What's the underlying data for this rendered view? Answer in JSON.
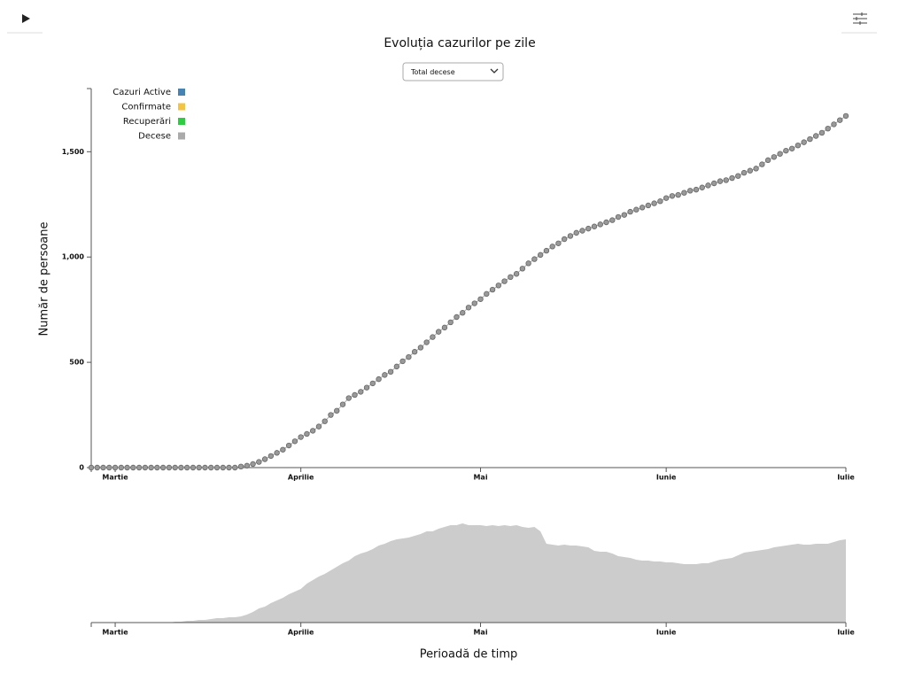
{
  "page": {
    "controls": {
      "dropdown": "Total decese"
    }
  },
  "chart_data": [
    {
      "type": "scatter-line",
      "title": "Evoluția cazurilor pe zile",
      "y_label": "Număr de persoane",
      "legend": [
        {
          "name": "Cazuri Active",
          "color": "#4682b4"
        },
        {
          "name": "Confirmate",
          "color": "#f5c342"
        },
        {
          "name": "Recuperări",
          "color": "#2ecc40"
        },
        {
          "name": "Decese",
          "color": "#aaaaaa"
        }
      ],
      "categories": [
        null,
        null,
        null,
        null,
        "Martie",
        null,
        null,
        null,
        null,
        null,
        null,
        null,
        null,
        null,
        null,
        null,
        null,
        null,
        null,
        null,
        null,
        null,
        null,
        null,
        null,
        null,
        null,
        null,
        null,
        null,
        null,
        null,
        null,
        null,
        null,
        "Aprilie",
        null,
        null,
        null,
        null,
        null,
        null,
        null,
        null,
        null,
        null,
        null,
        null,
        null,
        null,
        null,
        null,
        null,
        null,
        null,
        null,
        null,
        null,
        null,
        null,
        null,
        null,
        null,
        null,
        null,
        "Mai",
        null,
        null,
        null,
        null,
        null,
        null,
        null,
        null,
        null,
        null,
        null,
        null,
        null,
        null,
        null,
        null,
        null,
        null,
        null,
        null,
        null,
        null,
        null,
        null,
        null,
        null,
        null,
        null,
        null,
        null,
        "Iunie",
        null,
        null,
        null,
        null,
        null,
        null,
        null,
        null,
        null,
        null,
        null,
        null,
        null,
        null,
        null,
        null,
        null,
        null,
        null,
        null,
        null,
        null,
        null,
        null,
        null,
        null,
        null,
        null,
        null,
        "Iulie"
      ],
      "series": [
        {
          "name": "Decese",
          "color": "#999999",
          "values": [
            0,
            0,
            0,
            0,
            0,
            0,
            0,
            0,
            0,
            0,
            0,
            0,
            0,
            0,
            0,
            0,
            0,
            0,
            0,
            0,
            0,
            0,
            0,
            0,
            0,
            5,
            9,
            17,
            27,
            40,
            55,
            70,
            85,
            105,
            125,
            145,
            160,
            175,
            195,
            220,
            250,
            270,
            300,
            330,
            345,
            360,
            380,
            400,
            420,
            440,
            455,
            480,
            505,
            525,
            550,
            570,
            595,
            620,
            645,
            665,
            690,
            715,
            735,
            760,
            780,
            800,
            825,
            845,
            865,
            885,
            905,
            920,
            945,
            970,
            990,
            1010,
            1030,
            1050,
            1065,
            1085,
            1100,
            1115,
            1125,
            1135,
            1145,
            1155,
            1165,
            1175,
            1190,
            1200,
            1215,
            1225,
            1235,
            1245,
            1255,
            1265,
            1280,
            1290,
            1295,
            1305,
            1315,
            1320,
            1330,
            1340,
            1350,
            1360,
            1365,
            1375,
            1385,
            1400,
            1410,
            1420,
            1440,
            1460,
            1475,
            1490,
            1505,
            1515,
            1530,
            1545,
            1560,
            1575,
            1590,
            1610,
            1630,
            1650,
            1670
          ]
        }
      ],
      "ylim": [
        0,
        1800
      ],
      "yticks": [
        0,
        500,
        {
          "value": 1000,
          "label": "1,000"
        },
        {
          "value": 1500,
          "label": "1,500"
        }
      ]
    },
    {
      "type": "area",
      "x_label": "Perioadă de timp",
      "color": "#cccccc",
      "categories": [
        null,
        null,
        null,
        null,
        "Martie",
        null,
        null,
        null,
        null,
        null,
        null,
        null,
        null,
        null,
        null,
        null,
        null,
        null,
        null,
        null,
        null,
        null,
        null,
        null,
        null,
        null,
        null,
        null,
        null,
        null,
        null,
        null,
        null,
        null,
        null,
        "Aprilie",
        null,
        null,
        null,
        null,
        null,
        null,
        null,
        null,
        null,
        null,
        null,
        null,
        null,
        null,
        null,
        null,
        null,
        null,
        null,
        null,
        null,
        null,
        null,
        null,
        null,
        null,
        null,
        null,
        null,
        "Mai",
        null,
        null,
        null,
        null,
        null,
        null,
        null,
        null,
        null,
        null,
        null,
        null,
        null,
        null,
        null,
        null,
        null,
        null,
        null,
        null,
        null,
        null,
        null,
        null,
        null,
        null,
        null,
        null,
        null,
        null,
        "Iunie",
        null,
        null,
        null,
        null,
        null,
        null,
        null,
        null,
        null,
        null,
        null,
        null,
        null,
        null,
        null,
        null,
        null,
        null,
        null,
        null,
        null,
        null,
        null,
        null,
        null,
        null,
        null,
        null,
        null,
        "Iulie"
      ],
      "values": [
        0,
        0,
        0,
        0,
        0,
        0,
        0,
        0,
        0,
        0,
        0,
        0,
        0,
        0,
        1,
        1,
        2,
        2,
        3,
        3,
        4,
        5,
        5,
        6,
        6,
        7,
        9,
        12,
        16,
        18,
        22,
        25,
        28,
        32,
        35,
        38,
        44,
        48,
        52,
        55,
        59,
        63,
        67,
        70,
        75,
        78,
        80,
        83,
        87,
        89,
        92,
        94,
        95,
        96,
        98,
        100,
        103,
        103,
        106,
        108,
        110,
        110,
        112,
        110,
        110,
        110,
        109,
        110,
        109,
        110,
        109,
        110,
        108,
        107,
        108,
        103,
        89,
        88,
        87,
        88,
        87,
        87,
        86,
        85,
        81,
        80,
        80,
        78,
        75,
        74,
        73,
        71,
        70,
        70,
        69,
        69,
        68,
        68,
        67,
        66,
        66,
        66,
        67,
        67,
        69,
        71,
        72,
        73,
        76,
        79,
        80,
        81,
        82,
        83,
        85,
        86,
        87,
        88,
        89,
        88,
        88,
        89,
        89,
        89,
        91,
        93,
        94
      ],
      "ylim": [
        0,
        120
      ]
    }
  ]
}
